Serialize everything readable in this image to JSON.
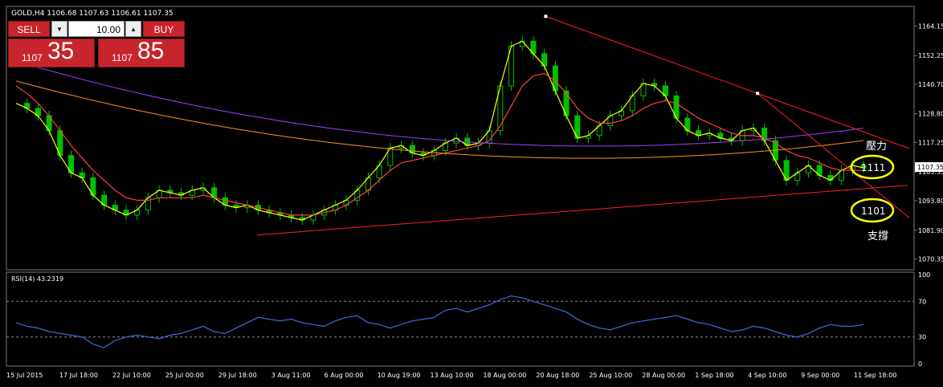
{
  "header": {
    "symbol_text": "GOLD,H4  1106.68 1107.63 1106.61 1107.35"
  },
  "trade_panel": {
    "sell_label": "SELL",
    "buy_label": "BUY",
    "lot_value": "10.00",
    "sell_price_small": "1107",
    "sell_price_big": "35",
    "buy_price_small": "1107",
    "buy_price_big": "85",
    "dropdown_glyph": "▾",
    "up_glyph": "▴"
  },
  "colors": {
    "background": "#000000",
    "grid": "#777777",
    "candle": "#00c000",
    "trendline": "#ff2020",
    "rsi_line": "#3a6fd6",
    "ellipse": "#ffff00",
    "button_red": "#c8242b"
  },
  "annotations": {
    "resistance_label": "壓力",
    "resistance_value": "1111",
    "support_label": "支撐",
    "support_value": "1101"
  },
  "chart_data": [
    {
      "type": "line",
      "title": "GOLD,H4  1106.68 1107.63 1106.61 1107.35",
      "ylim": [
        1066,
        1172
      ],
      "grid": false,
      "y_ticks": [
        "1164.15",
        "1152.25",
        "1140.70",
        "1128.80",
        "1117.25",
        "1105.35",
        "1093.80",
        "1081.90",
        "1070.35"
      ],
      "current_price_label": "1107.35",
      "x_ticks": [
        "15 Jul 2015",
        "17 Jul 18:00",
        "22 Jul 10:00",
        "25 Jul 00:00",
        "29 Jul 18:00",
        "3 Aug 11:00",
        "6 Aug 00:00",
        "10 Aug 19:00",
        "13 Aug 10:00",
        "18 Aug 00:00",
        "20 Aug 18:00",
        "25 Aug 10:00",
        "28 Aug 00:00",
        "1 Sep 18:00",
        "4 Sep 10:00",
        "9 Sep 00:00",
        "11 Sep 18:00"
      ],
      "series": [
        {
          "values": [
            1133,
            1131,
            1128,
            1122,
            1112,
            1105,
            1103,
            1096,
            1092,
            1090,
            1088,
            1090,
            1095,
            1098,
            1097,
            1096,
            1098,
            1099,
            1095,
            1092,
            1091,
            1092,
            1090,
            1089,
            1088,
            1087,
            1086,
            1088,
            1090,
            1092,
            1094,
            1098,
            1103,
            1108,
            1115,
            1116,
            1113,
            1112,
            1114,
            1117,
            1119,
            1116,
            1117,
            1122,
            1140,
            1156,
            1158,
            1153,
            1148,
            1138,
            1128,
            1119,
            1120,
            1124,
            1128,
            1130,
            1136,
            1141,
            1140,
            1136,
            1127,
            1122,
            1120,
            1121,
            1119,
            1118,
            1122,
            1123,
            1118,
            1110,
            1102,
            1105,
            1108,
            1104,
            1102,
            1106,
            1108,
            1107
          ]
        },
        {
          "values": [
            1140,
            1137,
            1133,
            1128,
            1122,
            1116,
            1111,
            1106,
            1102,
            1098,
            1095,
            1094,
            1094,
            1095,
            1095,
            1095,
            1095,
            1096,
            1095,
            1094,
            1093,
            1092,
            1091,
            1090,
            1089,
            1088,
            1088,
            1088,
            1089,
            1090,
            1092,
            1095,
            1098,
            1102,
            1106,
            1109,
            1110,
            1111,
            1112,
            1113,
            1114,
            1115,
            1116,
            1118,
            1124,
            1132,
            1140,
            1144,
            1145,
            1142,
            1137,
            1131,
            1127,
            1125,
            1125,
            1126,
            1128,
            1131,
            1133,
            1134,
            1133,
            1130,
            1127,
            1125,
            1123,
            1121,
            1120,
            1120,
            1119,
            1117,
            1114,
            1112,
            1111,
            1109,
            1107,
            1106,
            1106,
            1106
          ]
        }
      ],
      "trendlines": [
        {
          "name": "",
          "from": [
            "20 Aug 18:00",
            1168
          ],
          "to": [
            "4 Sep 10:00",
            1137
          ]
        },
        {
          "name": "",
          "from": [
            "4 Sep 10:00",
            1137
          ],
          "to": [
            "11 Sep 18:00",
            1102
          ]
        }
      ]
    },
    {
      "type": "line",
      "title": "RSI(14) 43.2319",
      "ylim": [
        0,
        100
      ],
      "y_ticks": [
        "100",
        "70",
        "30",
        "0"
      ],
      "reference_levels": [
        70,
        30
      ],
      "series": [
        {
          "values": [
            46,
            42,
            40,
            36,
            34,
            32,
            30,
            22,
            18,
            26,
            30,
            32,
            30,
            28,
            32,
            34,
            38,
            42,
            36,
            34,
            40,
            46,
            52,
            50,
            48,
            50,
            46,
            44,
            42,
            48,
            52,
            54,
            46,
            44,
            40,
            44,
            48,
            50,
            52,
            60,
            62,
            58,
            62,
            66,
            72,
            76,
            74,
            70,
            66,
            62,
            58,
            50,
            44,
            40,
            38,
            42,
            46,
            48,
            50,
            52,
            54,
            50,
            46,
            44,
            40,
            36,
            38,
            42,
            40,
            36,
            32,
            30,
            34,
            40,
            44,
            42,
            42,
            44
          ]
        }
      ]
    }
  ]
}
